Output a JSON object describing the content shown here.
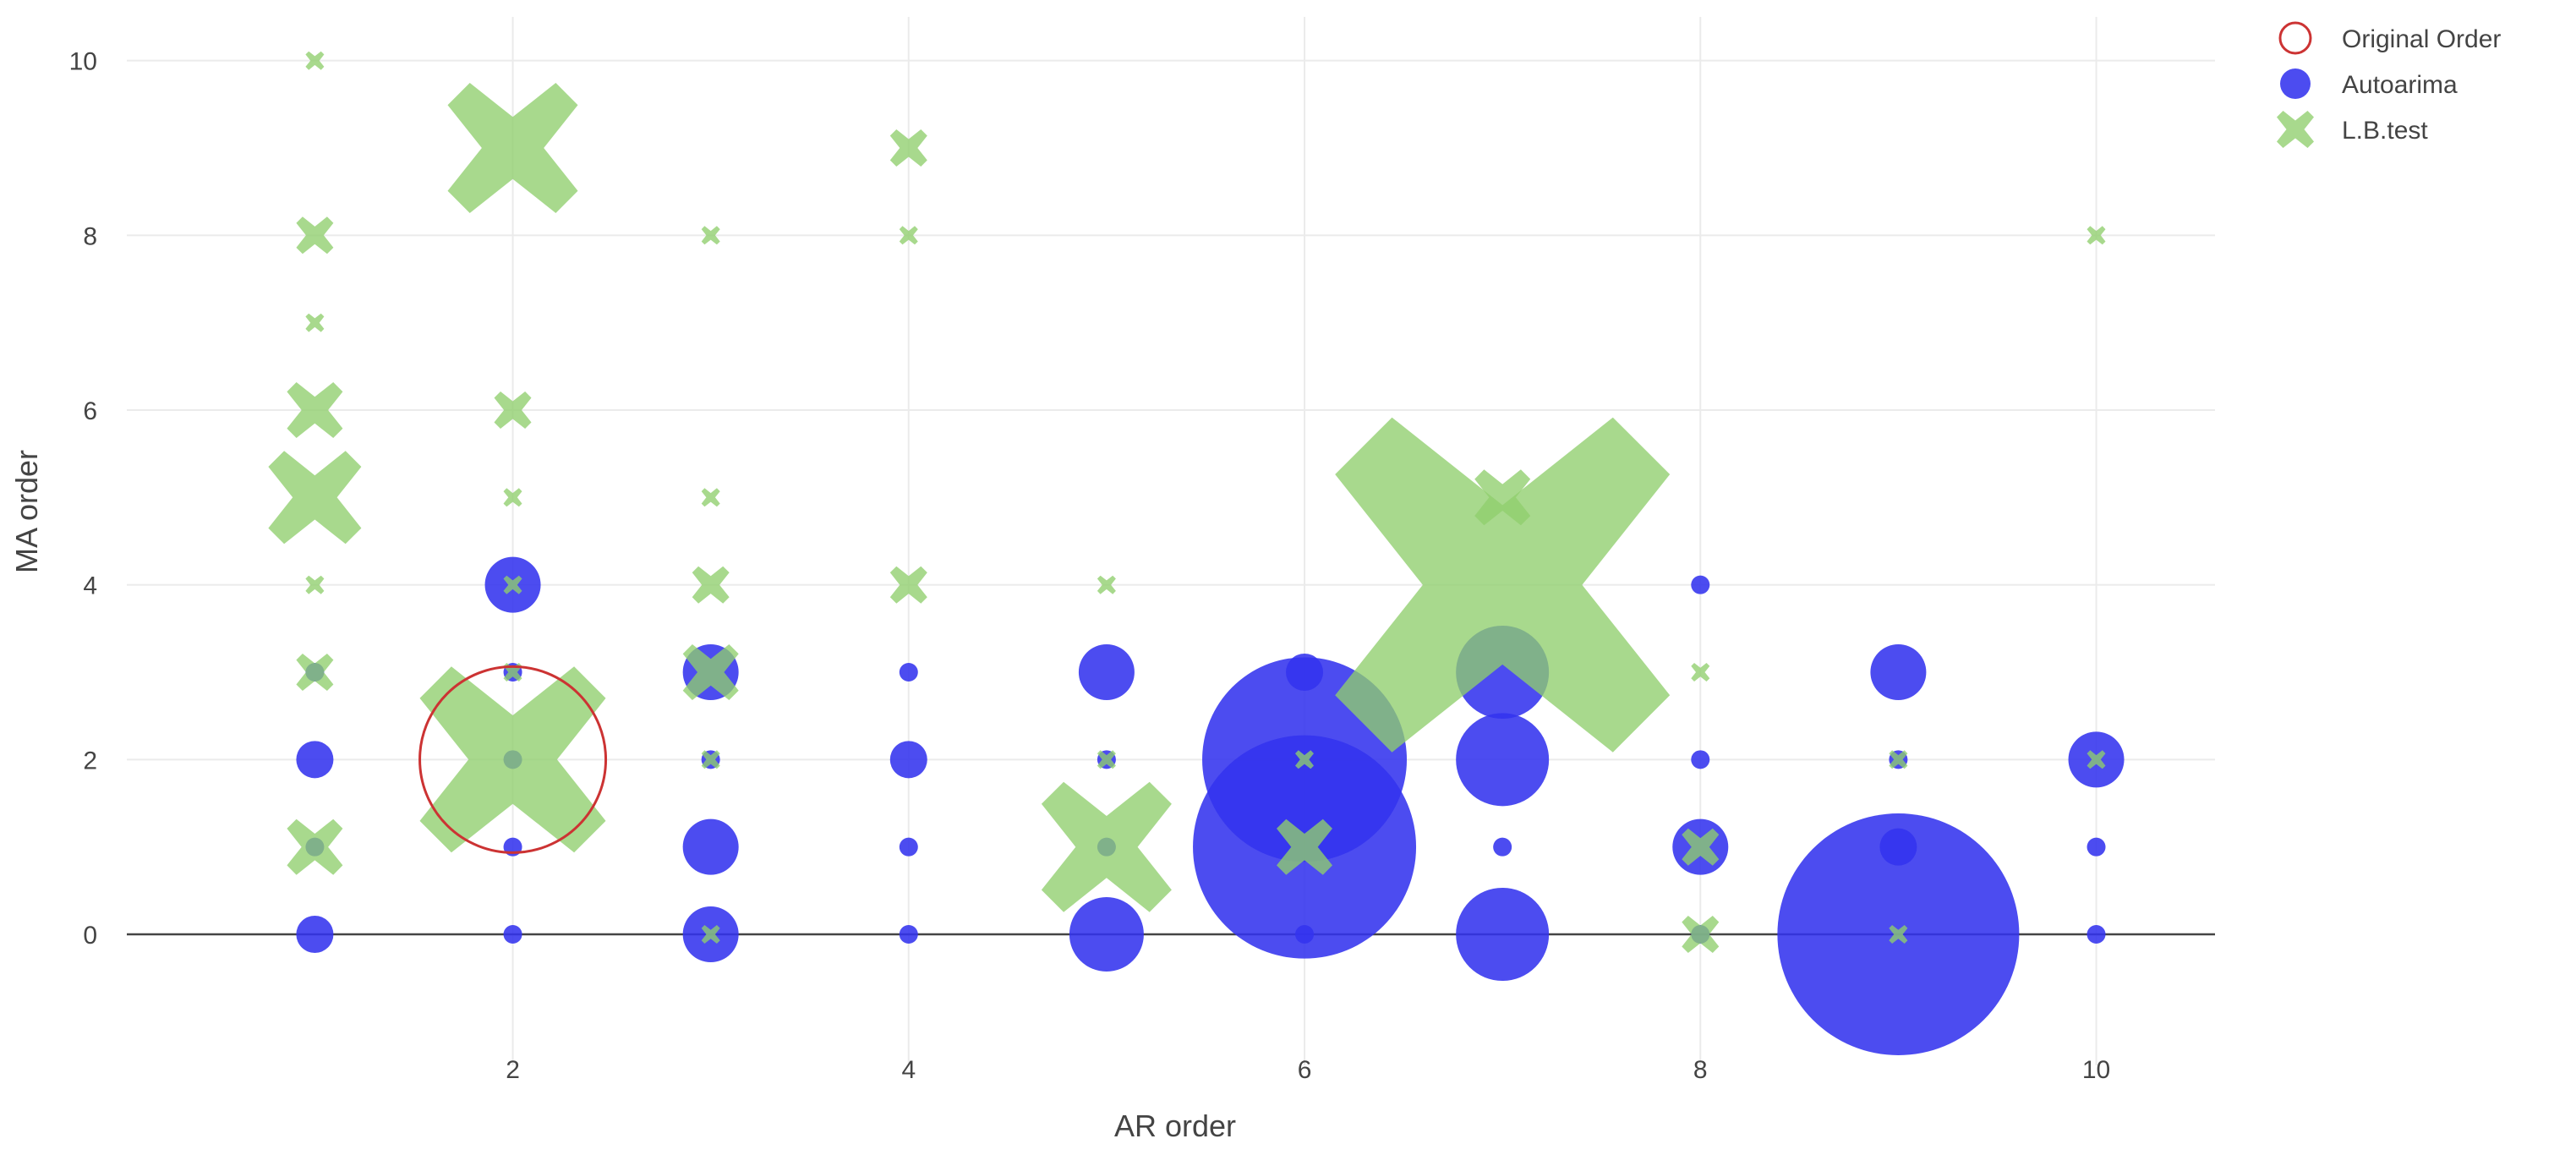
{
  "chart_data": {
    "type": "scatter",
    "xlabel": "AR order",
    "ylabel": "MA order",
    "xlim": [
      0.05,
      10.6
    ],
    "ylim": [
      -1.5,
      10.5
    ],
    "x_ticks": [
      2,
      4,
      6,
      8,
      10
    ],
    "y_ticks": [
      0,
      2,
      4,
      6,
      8,
      10
    ],
    "grid": true,
    "legend_position": "top-right",
    "series": [
      {
        "name": "Original Order",
        "marker": "open-circle",
        "color": "#cc3333",
        "points": [
          {
            "x": 2,
            "y": 2,
            "size": 10
          }
        ]
      },
      {
        "name": "Autoarima",
        "marker": "circle",
        "color": "#3333ee",
        "points": [
          {
            "x": 1,
            "y": 0,
            "size": 2
          },
          {
            "x": 1,
            "y": 1,
            "size": 1
          },
          {
            "x": 1,
            "y": 2,
            "size": 2
          },
          {
            "x": 1,
            "y": 3,
            "size": 1
          },
          {
            "x": 2,
            "y": 0,
            "size": 1
          },
          {
            "x": 2,
            "y": 1,
            "size": 1
          },
          {
            "x": 2,
            "y": 2,
            "size": 1
          },
          {
            "x": 2,
            "y": 3,
            "size": 1
          },
          {
            "x": 2,
            "y": 4,
            "size": 3
          },
          {
            "x": 3,
            "y": 0,
            "size": 3
          },
          {
            "x": 3,
            "y": 1,
            "size": 3
          },
          {
            "x": 3,
            "y": 2,
            "size": 1
          },
          {
            "x": 3,
            "y": 3,
            "size": 3
          },
          {
            "x": 4,
            "y": 0,
            "size": 1
          },
          {
            "x": 4,
            "y": 1,
            "size": 1
          },
          {
            "x": 4,
            "y": 2,
            "size": 2
          },
          {
            "x": 4,
            "y": 3,
            "size": 1
          },
          {
            "x": 5,
            "y": 0,
            "size": 4
          },
          {
            "x": 5,
            "y": 1,
            "size": 1
          },
          {
            "x": 5,
            "y": 2,
            "size": 1
          },
          {
            "x": 5,
            "y": 3,
            "size": 3
          },
          {
            "x": 6,
            "y": 0,
            "size": 1
          },
          {
            "x": 6,
            "y": 1,
            "size": 12
          },
          {
            "x": 6,
            "y": 2,
            "size": 11
          },
          {
            "x": 6,
            "y": 3,
            "size": 2
          },
          {
            "x": 7,
            "y": 0,
            "size": 5
          },
          {
            "x": 7,
            "y": 1,
            "size": 1
          },
          {
            "x": 7,
            "y": 2,
            "size": 5
          },
          {
            "x": 7,
            "y": 3,
            "size": 5
          },
          {
            "x": 8,
            "y": 0,
            "size": 1
          },
          {
            "x": 8,
            "y": 1,
            "size": 3
          },
          {
            "x": 8,
            "y": 2,
            "size": 1
          },
          {
            "x": 8,
            "y": 4,
            "size": 1
          },
          {
            "x": 9,
            "y": 0,
            "size": 13
          },
          {
            "x": 9,
            "y": 1,
            "size": 2
          },
          {
            "x": 9,
            "y": 2,
            "size": 1
          },
          {
            "x": 9,
            "y": 3,
            "size": 3
          },
          {
            "x": 10,
            "y": 0,
            "size": 1
          },
          {
            "x": 10,
            "y": 1,
            "size": 1
          },
          {
            "x": 10,
            "y": 2,
            "size": 3
          }
        ]
      },
      {
        "name": "L.B.test",
        "marker": "x",
        "color": "#8fce6d",
        "points": [
          {
            "x": 1,
            "y": 1,
            "size": 3
          },
          {
            "x": 1,
            "y": 3,
            "size": 2
          },
          {
            "x": 1,
            "y": 4,
            "size": 1
          },
          {
            "x": 1,
            "y": 5,
            "size": 5
          },
          {
            "x": 1,
            "y": 6,
            "size": 3
          },
          {
            "x": 1,
            "y": 7,
            "size": 1
          },
          {
            "x": 1,
            "y": 8,
            "size": 2
          },
          {
            "x": 1,
            "y": 10,
            "size": 1
          },
          {
            "x": 2,
            "y": 2,
            "size": 10
          },
          {
            "x": 2,
            "y": 3,
            "size": 1
          },
          {
            "x": 2,
            "y": 4,
            "size": 1
          },
          {
            "x": 2,
            "y": 5,
            "size": 1
          },
          {
            "x": 2,
            "y": 6,
            "size": 2
          },
          {
            "x": 2,
            "y": 9,
            "size": 7
          },
          {
            "x": 3,
            "y": 0,
            "size": 1
          },
          {
            "x": 3,
            "y": 2,
            "size": 1
          },
          {
            "x": 3,
            "y": 3,
            "size": 3
          },
          {
            "x": 3,
            "y": 4,
            "size": 2
          },
          {
            "x": 3,
            "y": 5,
            "size": 1
          },
          {
            "x": 3,
            "y": 8,
            "size": 1
          },
          {
            "x": 4,
            "y": 4,
            "size": 2
          },
          {
            "x": 4,
            "y": 8,
            "size": 1
          },
          {
            "x": 4,
            "y": 9,
            "size": 2
          },
          {
            "x": 5,
            "y": 1,
            "size": 7
          },
          {
            "x": 5,
            "y": 2,
            "size": 1
          },
          {
            "x": 5,
            "y": 4,
            "size": 1
          },
          {
            "x": 6,
            "y": 1,
            "size": 3
          },
          {
            "x": 6,
            "y": 2,
            "size": 1
          },
          {
            "x": 7,
            "y": 4,
            "size": 18
          },
          {
            "x": 7,
            "y": 5,
            "size": 3
          },
          {
            "x": 8,
            "y": 0,
            "size": 2
          },
          {
            "x": 8,
            "y": 1,
            "size": 2
          },
          {
            "x": 8,
            "y": 3,
            "size": 1
          },
          {
            "x": 9,
            "y": 0,
            "size": 1
          },
          {
            "x": 9,
            "y": 2,
            "size": 1
          },
          {
            "x": 10,
            "y": 2,
            "size": 1
          },
          {
            "x": 10,
            "y": 8,
            "size": 1
          }
        ]
      }
    ]
  }
}
